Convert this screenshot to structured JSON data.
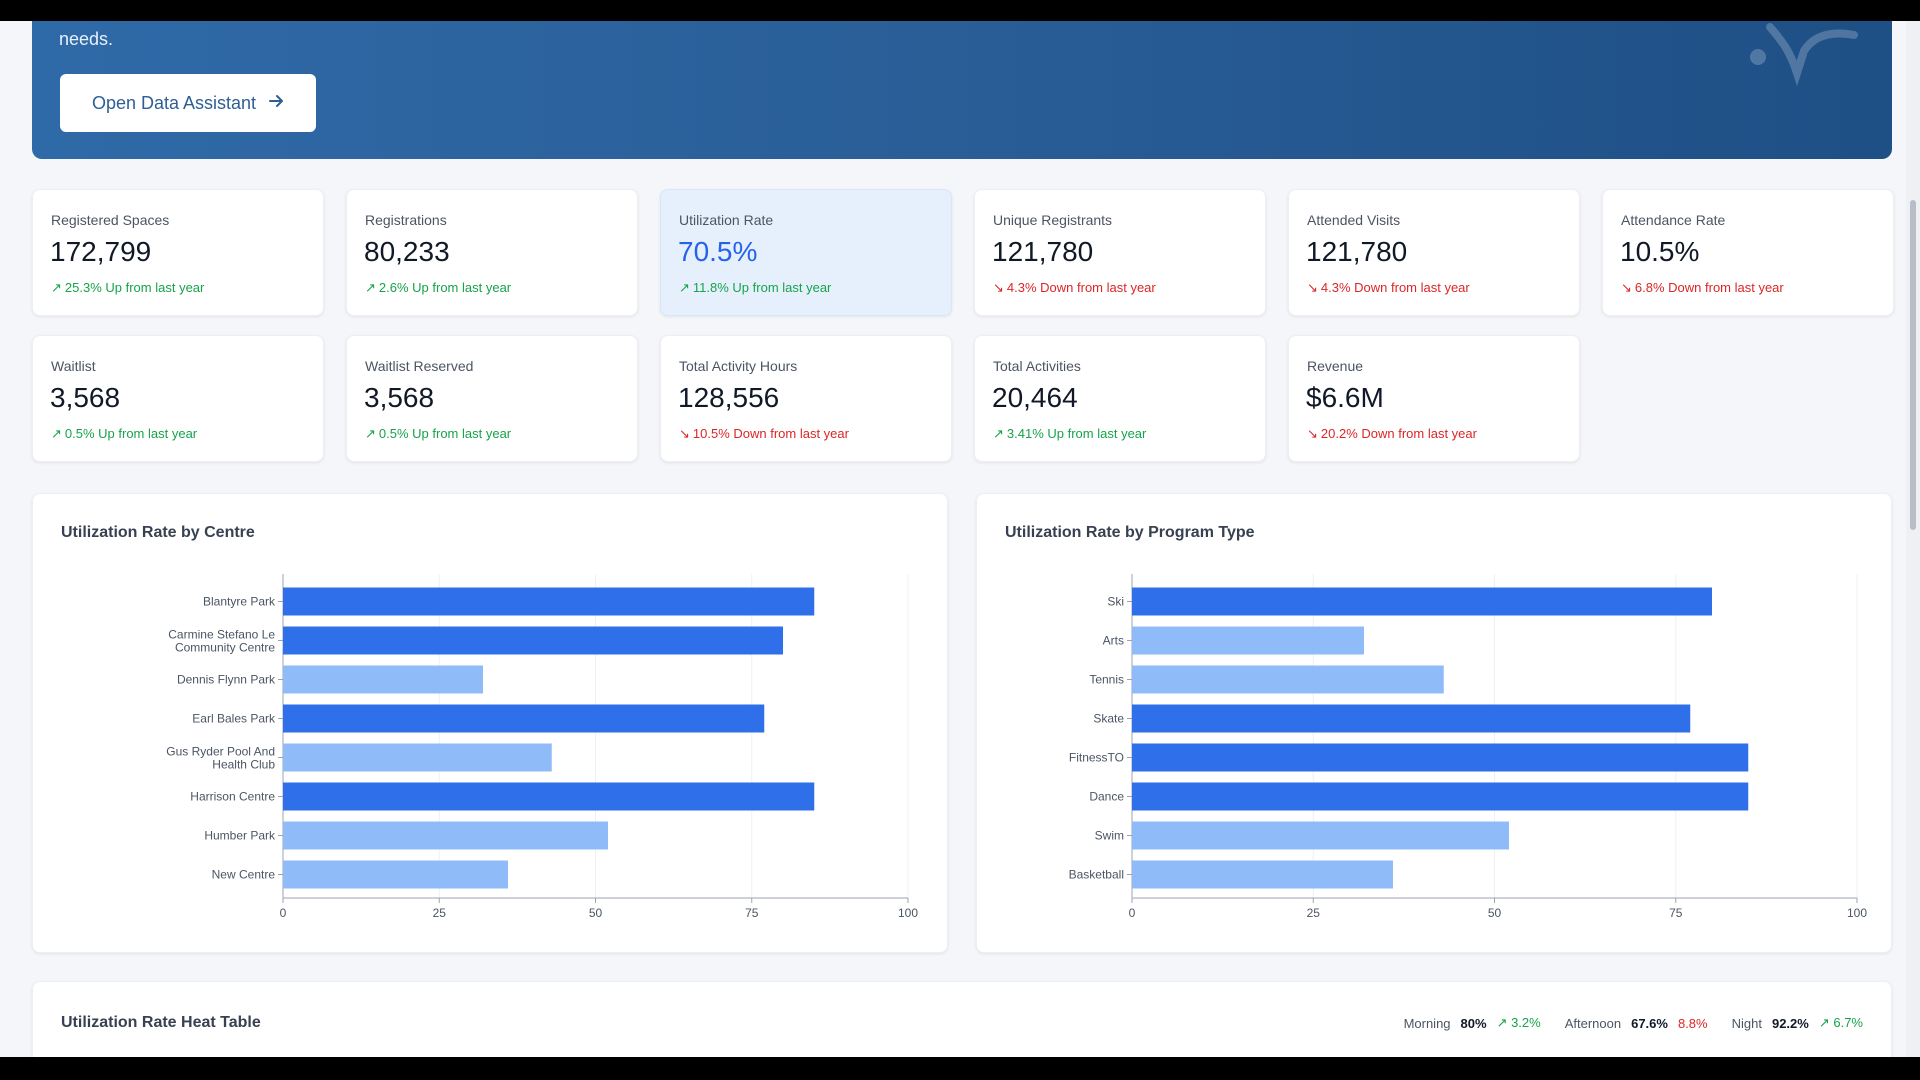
{
  "hero": {
    "text": "needs.",
    "button_label": "Open Data Assistant",
    "button_icon": "arrow-right-icon"
  },
  "kpis": [
    {
      "label": "Registered Spaces",
      "value": "172,799",
      "change": "25.3% Up from last year",
      "direction": "up"
    },
    {
      "label": "Registrations",
      "value": "80,233",
      "change": "2.6% Up from last year",
      "direction": "up"
    },
    {
      "label": "Utilization Rate",
      "value": "70.5%",
      "change": "11.8% Up from last year",
      "direction": "up",
      "highlight": true
    },
    {
      "label": "Unique Registrants",
      "value": "121,780",
      "change": "4.3% Down from last year",
      "direction": "down"
    },
    {
      "label": "Attended Visits",
      "value": "121,780",
      "change": "4.3% Down from last year",
      "direction": "down"
    },
    {
      "label": "Attendance Rate",
      "value": "10.5%",
      "change": "6.8% Down from last year",
      "direction": "down"
    },
    {
      "label": "Waitlist",
      "value": "3,568",
      "change": "0.5% Up from last year",
      "direction": "up"
    },
    {
      "label": "Waitlist Reserved",
      "value": "3,568",
      "change": "0.5% Up from last year",
      "direction": "up"
    },
    {
      "label": "Total Activity Hours",
      "value": "128,556",
      "change": "10.5% Down from last year",
      "direction": "down"
    },
    {
      "label": "Total Activities",
      "value": "20,464",
      "change": "3.41% Up from last year",
      "direction": "up"
    },
    {
      "label": "Revenue",
      "value": "$6.6M",
      "change": "20.2% Down from last year",
      "direction": "down"
    }
  ],
  "colors": {
    "dark_bar": "#2f6fea",
    "light_bar": "#8fbcf8",
    "up": "#16a34a",
    "down": "#dc2626"
  },
  "chart_data": [
    {
      "type": "bar",
      "orientation": "horizontal",
      "title": "Utilization Rate by Centre",
      "categories": [
        "Blantyre Park",
        "Carmine Stefano Le Community Centre",
        "Dennis Flynn Park",
        "Earl Bales Park",
        "Gus Ryder Pool And Health Club",
        "Harrison Centre",
        "Humber Park",
        "New Centre"
      ],
      "values": [
        85,
        80,
        32,
        77,
        43,
        85,
        52,
        36
      ],
      "shade": [
        "dark",
        "dark",
        "light",
        "dark",
        "light",
        "dark",
        "light",
        "light"
      ],
      "xlim": [
        0,
        100
      ],
      "xticks": [
        0,
        25,
        50,
        75,
        100
      ],
      "grid": true
    },
    {
      "type": "bar",
      "orientation": "horizontal",
      "title": "Utilization Rate by Program Type",
      "categories": [
        "Ski",
        "Arts",
        "Tennis",
        "Skate",
        "FitnessTO",
        "Dance",
        "Swim",
        "Basketball"
      ],
      "values": [
        80,
        32,
        43,
        77,
        85,
        85,
        52,
        36
      ],
      "shade": [
        "dark",
        "light",
        "light",
        "dark",
        "dark",
        "dark",
        "light",
        "light"
      ],
      "xlim": [
        0,
        100
      ],
      "xticks": [
        0,
        25,
        50,
        75,
        100
      ],
      "grid": true
    }
  ],
  "heat_table": {
    "title": "Utilization Rate Heat Table",
    "legend": [
      {
        "label": "Morning",
        "value": "80%",
        "change": "3.2%",
        "direction": "up"
      },
      {
        "label": "Afternoon",
        "value": "67.6%",
        "change": "8.8%",
        "direction": "down"
      },
      {
        "label": "Night",
        "value": "92.2%",
        "change": "6.7%",
        "direction": "up"
      }
    ]
  }
}
